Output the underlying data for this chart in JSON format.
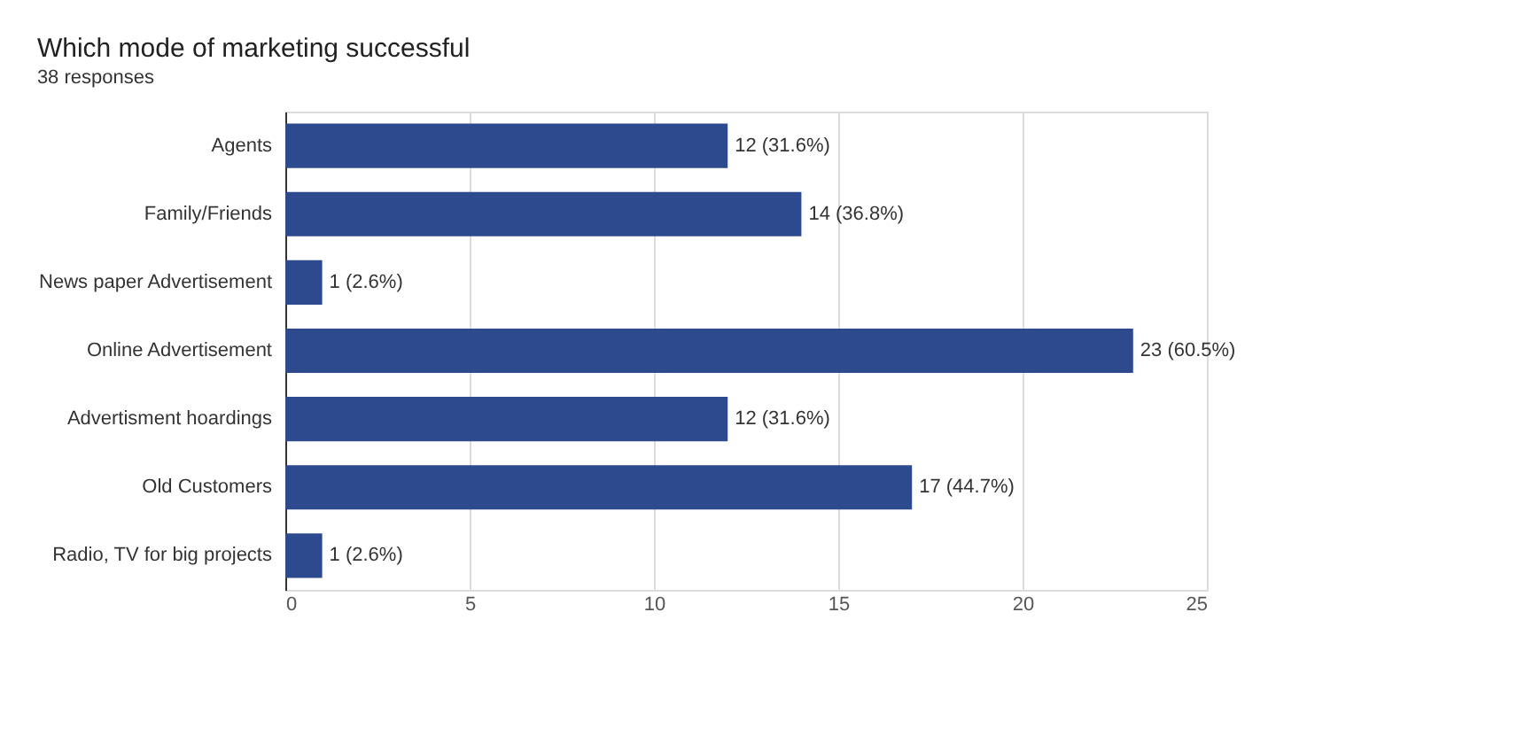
{
  "chart_data": {
    "type": "bar",
    "orientation": "horizontal",
    "title": "Which mode of marketing successful",
    "subtitle": "38 responses",
    "categories": [
      "Agents",
      "Family/Friends",
      "News paper Advertisement",
      "Online Advertisement",
      "Advertisment hoardings",
      "Old Customers",
      "Radio, TV for big projects"
    ],
    "values": [
      12,
      14,
      1,
      23,
      12,
      17,
      1
    ],
    "value_labels": [
      "12 (31.6%)",
      "14 (36.8%)",
      "1 (2.6%)",
      "23 (60.5%)",
      "12 (31.6%)",
      "17 (44.7%)",
      "1 (2.6%)"
    ],
    "color": "#2e4a8f",
    "xlim": [
      0,
      25
    ],
    "xticks": [
      0,
      5,
      10,
      15,
      20,
      25
    ],
    "grid": "x"
  }
}
